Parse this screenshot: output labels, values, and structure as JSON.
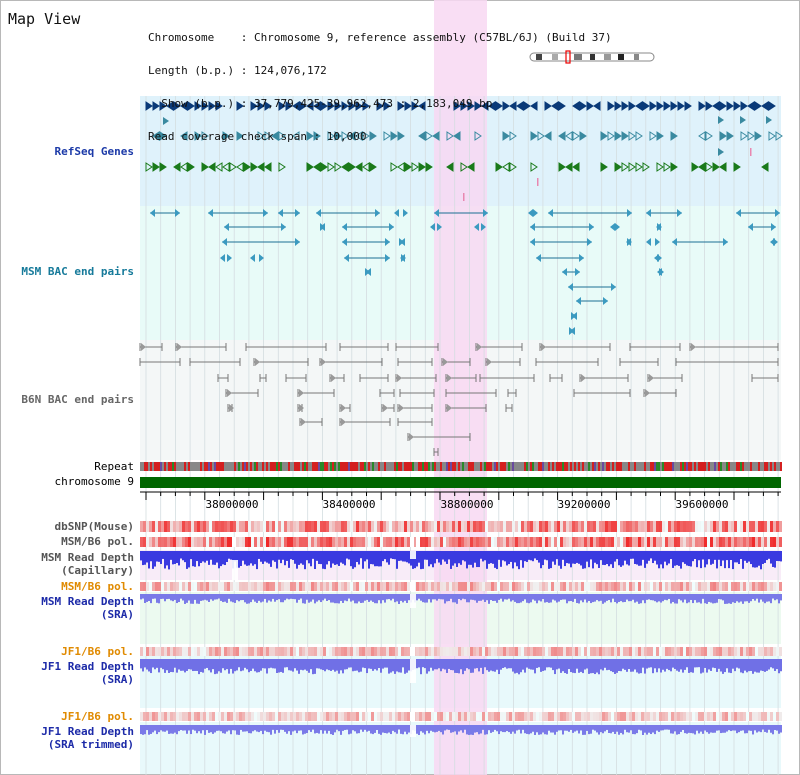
{
  "title": "Map View",
  "info": {
    "chromosome": "Chromosome    : Chromosome 9, reference assembly (C57BL/6J) (Build 37)",
    "length": "Length (b.p.) : 124,076,172",
    "show": "  Show (b.p.) : 37,779,425-39,962,473 : 2,183,049 bp",
    "coverage": "Read coverage check span : 10,000"
  },
  "tracks": {
    "refseq": "RefSeq Genes",
    "msm_bac": "MSM BAC end pairs",
    "b6n_bac": "B6N BAC end pairs",
    "repeat": "Repeat",
    "chromosome": "chromosome 9",
    "dbsnp": "dbSNP(Mouse)",
    "msm_b6_pol_1": "MSM/B6 pol.",
    "msm_depth_cap": "MSM Read Depth",
    "msm_depth_cap_sub": "(Capillary)",
    "msm_b6_pol_2": "MSM/B6 pol.",
    "msm_depth_sra": "MSM Read Depth",
    "msm_depth_sra_sub": "(SRA)",
    "jf1_b6_pol_1": "JF1/B6 pol.",
    "jf1_depth_sra": "JF1 Read Depth",
    "jf1_depth_sra_sub": "(SRA)",
    "jf1_b6_pol_2": "JF1/B6 pol.",
    "jf1_depth_trim": "JF1 Read Depth",
    "jf1_depth_trim_sub": "(SRA trimmed)"
  },
  "ruler": {
    "ticks": [
      "38000000",
      "38400000",
      "38800000",
      "39200000",
      "39600000"
    ]
  },
  "colors": {
    "highlight": "#f8d8f2",
    "refseq_bg": "#dff2fb",
    "msm_bac_bg": "#e8fbf8",
    "chromosome_bar": "#006600",
    "gene_blue": "#0a3a78",
    "gene_teal": "#3a8aa0",
    "gene_green": "#1a7a1a"
  }
}
